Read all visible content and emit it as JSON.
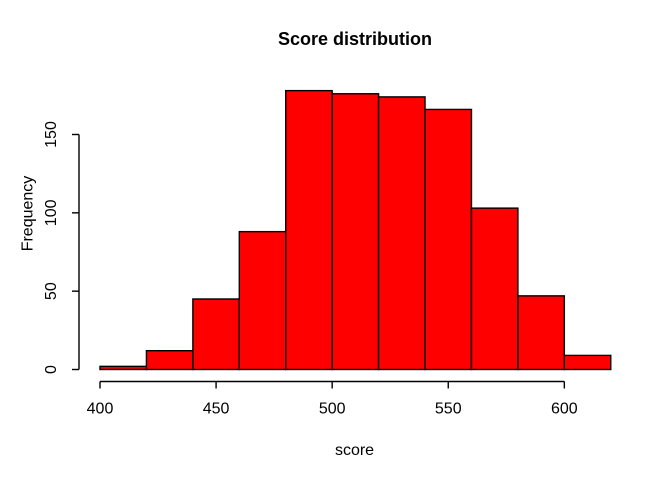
{
  "chart_data": {
    "type": "bar",
    "subtype": "histogram",
    "title": "Score distribution",
    "xlabel": "score",
    "ylabel": "Frequency",
    "bin_edges": [
      400,
      420,
      440,
      460,
      480,
      500,
      520,
      540,
      560,
      580,
      600,
      620
    ],
    "counts": [
      2,
      12,
      45,
      88,
      178,
      176,
      174,
      166,
      103,
      47,
      9
    ],
    "x_ticks": [
      400,
      450,
      500,
      550,
      600
    ],
    "y_ticks": [
      0,
      50,
      100,
      150
    ],
    "xlim": [
      400,
      620
    ],
    "ylim": [
      0,
      178
    ],
    "grid": "off",
    "legend": "none",
    "bar_fill_color": "#FF0000",
    "bar_border_color": "#000000",
    "axis_color": "#000000",
    "background_color": "#FFFFFF"
  }
}
